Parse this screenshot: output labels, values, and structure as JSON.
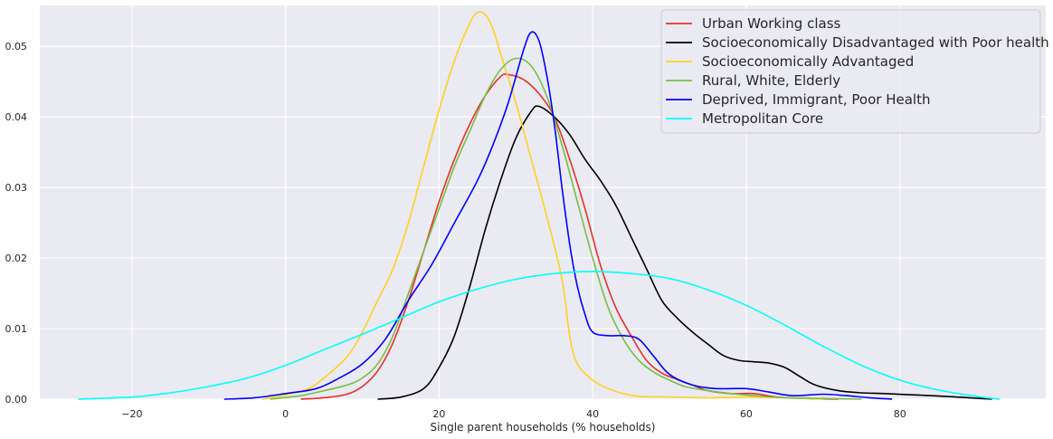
{
  "chart_data": {
    "type": "line",
    "title": "",
    "xlabel": "Single parent households (% households)",
    "ylabel": "",
    "xlim": [
      -32,
      99
    ],
    "ylim": [
      0,
      0.0558
    ],
    "xticks": [
      -20,
      0,
      20,
      40,
      60,
      80
    ],
    "xtick_labels": [
      "−20",
      "0",
      "20",
      "40",
      "60",
      "80"
    ],
    "yticks": [
      0,
      0.01,
      0.02,
      0.03,
      0.04,
      0.05
    ],
    "ytick_labels": [
      "0.00",
      "0.01",
      "0.02",
      "0.03",
      "0.04",
      "0.05"
    ],
    "grid": true,
    "legend_position": "top-right",
    "series": [
      {
        "name": "Urban Working class",
        "color": "#e8302b",
        "points": [
          [
            2,
            0
          ],
          [
            5,
            0.0002
          ],
          [
            8,
            0.0007
          ],
          [
            10,
            0.0018
          ],
          [
            12,
            0.004
          ],
          [
            14,
            0.008
          ],
          [
            16,
            0.014
          ],
          [
            18,
            0.021
          ],
          [
            20,
            0.028
          ],
          [
            22,
            0.034
          ],
          [
            24,
            0.039
          ],
          [
            26,
            0.043
          ],
          [
            28,
            0.0457
          ],
          [
            29,
            0.046
          ],
          [
            31,
            0.0453
          ],
          [
            33,
            0.0433
          ],
          [
            35,
            0.04
          ],
          [
            37,
            0.034
          ],
          [
            39,
            0.027
          ],
          [
            41,
            0.019
          ],
          [
            43,
            0.013
          ],
          [
            45,
            0.009
          ],
          [
            47,
            0.0055
          ],
          [
            49,
            0.0037
          ],
          [
            51,
            0.0028
          ],
          [
            53,
            0.002
          ],
          [
            55,
            0.0012
          ],
          [
            58,
            0.0008
          ],
          [
            61,
            0.0008
          ],
          [
            64,
            0.0003
          ],
          [
            68,
            0.0001
          ],
          [
            72,
            0
          ]
        ]
      },
      {
        "name": "Socioeconomically Disadvantaged with Poor health",
        "color": "#000000",
        "points": [
          [
            12,
            0
          ],
          [
            15,
            0.0003
          ],
          [
            18,
            0.0015
          ],
          [
            20,
            0.0045
          ],
          [
            22,
            0.009
          ],
          [
            24,
            0.016
          ],
          [
            26,
            0.024
          ],
          [
            28,
            0.031
          ],
          [
            30,
            0.037
          ],
          [
            32,
            0.0408
          ],
          [
            33,
            0.0415
          ],
          [
            35,
            0.04
          ],
          [
            37,
            0.0375
          ],
          [
            39,
            0.034
          ],
          [
            41,
            0.031
          ],
          [
            43,
            0.0275
          ],
          [
            45,
            0.023
          ],
          [
            47,
            0.0185
          ],
          [
            49,
            0.014
          ],
          [
            51,
            0.0115
          ],
          [
            53,
            0.0095
          ],
          [
            55,
            0.0078
          ],
          [
            57,
            0.0062
          ],
          [
            59,
            0.0055
          ],
          [
            61,
            0.0053
          ],
          [
            63,
            0.0051
          ],
          [
            65,
            0.0045
          ],
          [
            67,
            0.0032
          ],
          [
            69,
            0.002
          ],
          [
            72,
            0.0012
          ],
          [
            75,
            0.0009
          ],
          [
            78,
            0.0008
          ],
          [
            82,
            0.0006
          ],
          [
            86,
            0.0004
          ],
          [
            89,
            0.0002
          ],
          [
            92,
            0
          ]
        ]
      },
      {
        "name": "Socioeconomically Advantaged",
        "color": "#ffd21e",
        "points": [
          [
            -3,
            0
          ],
          [
            0,
            0.0006
          ],
          [
            3,
            0.0015
          ],
          [
            5,
            0.003
          ],
          [
            8,
            0.006
          ],
          [
            10,
            0.0095
          ],
          [
            12,
            0.014
          ],
          [
            14,
            0.0185
          ],
          [
            16,
            0.025
          ],
          [
            18,
            0.033
          ],
          [
            20,
            0.041
          ],
          [
            22,
            0.048
          ],
          [
            24,
            0.0533
          ],
          [
            25,
            0.0548
          ],
          [
            26,
            0.0545
          ],
          [
            27,
            0.0525
          ],
          [
            28,
            0.049
          ],
          [
            30,
            0.042
          ],
          [
            32,
            0.034
          ],
          [
            34,
            0.026
          ],
          [
            36,
            0.017
          ],
          [
            37,
            0.009
          ],
          [
            38,
            0.005
          ],
          [
            40,
            0.0027
          ],
          [
            42,
            0.0015
          ],
          [
            44,
            0.0008
          ],
          [
            46,
            0.0004
          ],
          [
            50,
            0.0003
          ],
          [
            55,
            0.0002
          ],
          [
            60,
            0.0003
          ],
          [
            65,
            0.0002
          ],
          [
            70,
            0
          ]
        ]
      },
      {
        "name": "Rural, White, Elderly",
        "color": "#77bf42",
        "points": [
          [
            -2,
            0
          ],
          [
            2,
            0.0005
          ],
          [
            5,
            0.0012
          ],
          [
            8,
            0.002
          ],
          [
            10,
            0.003
          ],
          [
            12,
            0.005
          ],
          [
            14,
            0.009
          ],
          [
            16,
            0.015
          ],
          [
            18,
            0.021
          ],
          [
            20,
            0.027
          ],
          [
            22,
            0.033
          ],
          [
            24,
            0.038
          ],
          [
            26,
            0.043
          ],
          [
            28,
            0.0467
          ],
          [
            30,
            0.0483
          ],
          [
            32,
            0.0472
          ],
          [
            34,
            0.043
          ],
          [
            36,
            0.036
          ],
          [
            38,
            0.028
          ],
          [
            40,
            0.02
          ],
          [
            42,
            0.013
          ],
          [
            44,
            0.0085
          ],
          [
            46,
            0.0055
          ],
          [
            48,
            0.0038
          ],
          [
            50,
            0.0027
          ],
          [
            52,
            0.0018
          ],
          [
            55,
            0.0012
          ],
          [
            58,
            0.0008
          ],
          [
            61,
            0.0005
          ],
          [
            65,
            0.0002
          ],
          [
            70,
            0.0001
          ],
          [
            75,
            0
          ]
        ]
      },
      {
        "name": "Deprived, Immigrant, Poor Health",
        "color": "#0000ff",
        "points": [
          [
            -8,
            0
          ],
          [
            -4,
            0.0002
          ],
          [
            0,
            0.0008
          ],
          [
            4,
            0.0015
          ],
          [
            7,
            0.003
          ],
          [
            10,
            0.005
          ],
          [
            13,
            0.0085
          ],
          [
            16,
            0.014
          ],
          [
            19,
            0.019
          ],
          [
            22,
            0.025
          ],
          [
            25,
            0.031
          ],
          [
            27,
            0.036
          ],
          [
            29,
            0.042
          ],
          [
            31,
            0.0495
          ],
          [
            32,
            0.052
          ],
          [
            33,
            0.0508
          ],
          [
            34,
            0.046
          ],
          [
            35,
            0.039
          ],
          [
            36,
            0.03
          ],
          [
            37,
            0.022
          ],
          [
            38,
            0.016
          ],
          [
            39,
            0.012
          ],
          [
            40,
            0.0095
          ],
          [
            42,
            0.009
          ],
          [
            44,
            0.009
          ],
          [
            46,
            0.0085
          ],
          [
            48,
            0.006
          ],
          [
            50,
            0.0035
          ],
          [
            53,
            0.002
          ],
          [
            56,
            0.0015
          ],
          [
            60,
            0.0015
          ],
          [
            63,
            0.001
          ],
          [
            66,
            0.0005
          ],
          [
            70,
            0.0007
          ],
          [
            73,
            0.0005
          ],
          [
            76,
            0.0002
          ],
          [
            79,
            0
          ]
        ]
      },
      {
        "name": "Metropolitan Core",
        "color": "#00ffff",
        "points": [
          [
            -27,
            0
          ],
          [
            -20,
            0.0003
          ],
          [
            -15,
            0.0009
          ],
          [
            -10,
            0.0018
          ],
          [
            -5,
            0.003
          ],
          [
            0,
            0.0048
          ],
          [
            5,
            0.007
          ],
          [
            10,
            0.0092
          ],
          [
            15,
            0.0115
          ],
          [
            20,
            0.0138
          ],
          [
            25,
            0.0156
          ],
          [
            30,
            0.017
          ],
          [
            35,
            0.0178
          ],
          [
            40,
            0.0181
          ],
          [
            45,
            0.0178
          ],
          [
            50,
            0.0171
          ],
          [
            55,
            0.0155
          ],
          [
            60,
            0.0133
          ],
          [
            65,
            0.0105
          ],
          [
            70,
            0.0075
          ],
          [
            75,
            0.0048
          ],
          [
            80,
            0.0027
          ],
          [
            85,
            0.0013
          ],
          [
            90,
            0.0004
          ],
          [
            93,
            0
          ]
        ]
      }
    ]
  }
}
